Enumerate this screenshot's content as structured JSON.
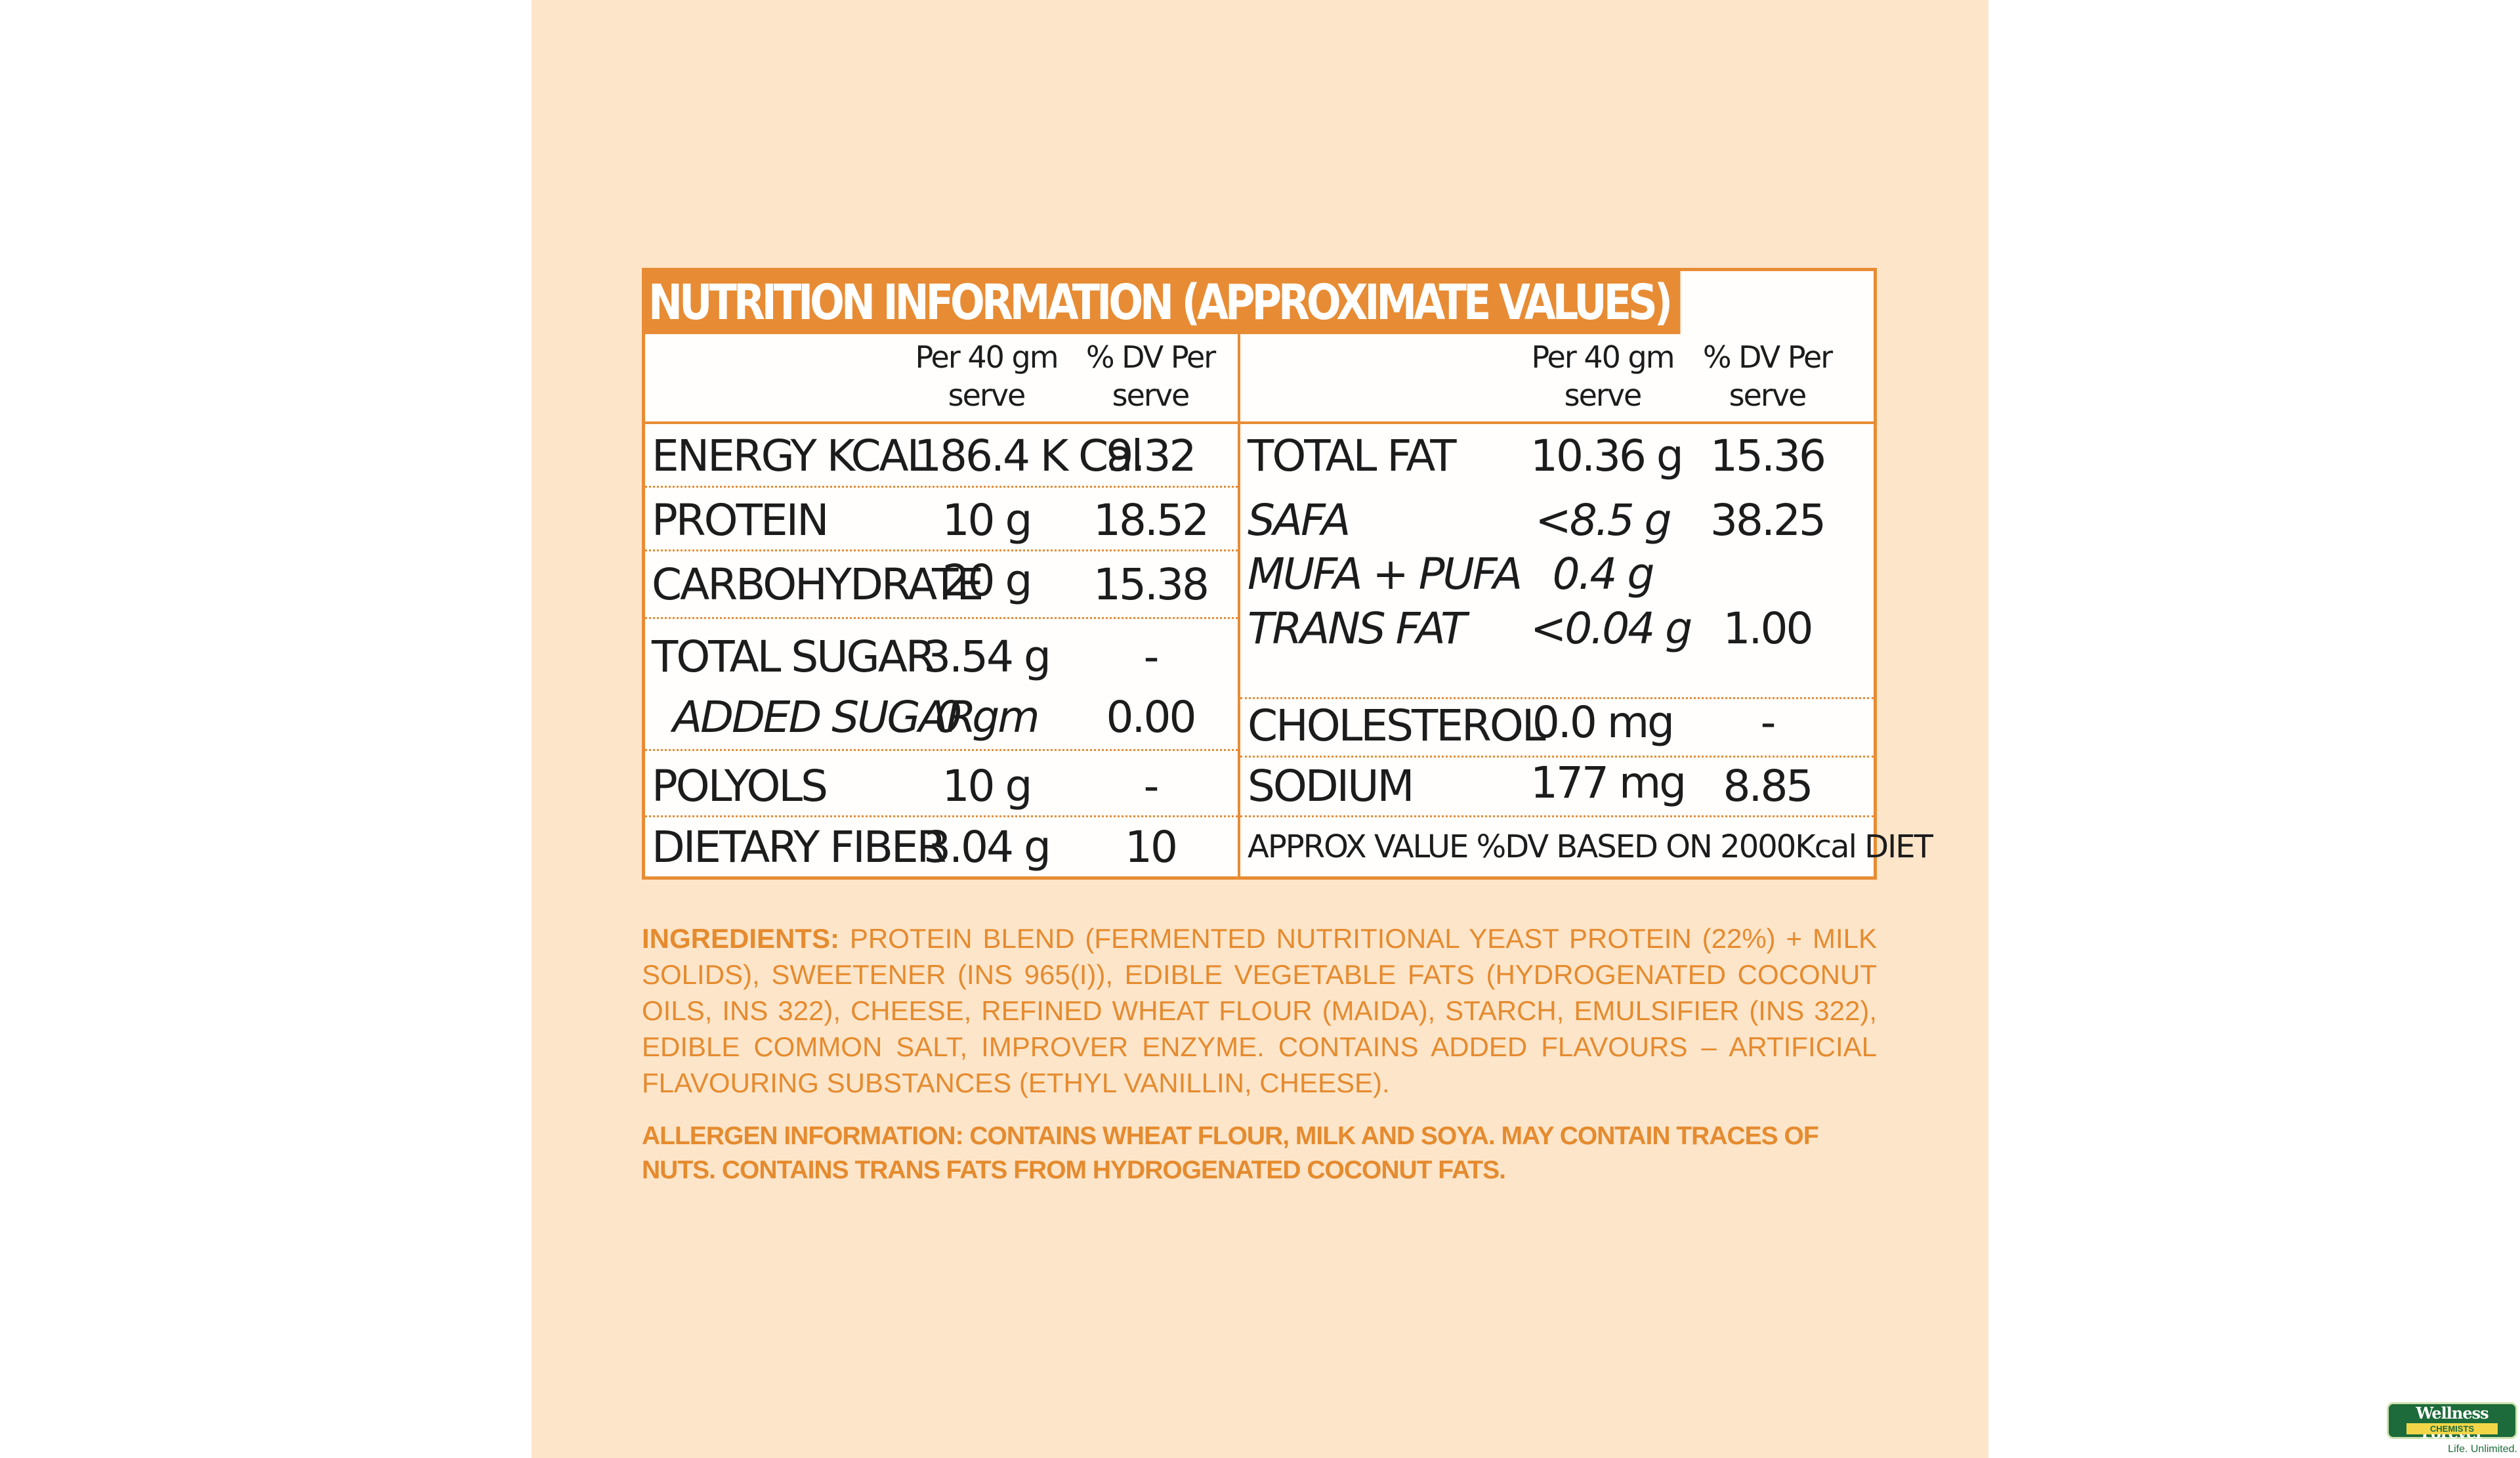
{
  "label": {
    "title": "NUTRITION INFORMATION (APPROXIMATE VALUES)",
    "header": {
      "per_serve_left": "Per 40 gm",
      "per_serve_left_2": "serve",
      "dv_left": "% DV Per",
      "dv_left_2": "serve",
      "per_serve_right": "Per 40 gm",
      "per_serve_right_2": "serve",
      "dv_right": "% DV Per",
      "dv_right_2": "serve"
    },
    "left_rows": [
      {
        "name": "ENERGY KCAL",
        "amount": "186.4 K Cal",
        "dv": "9.32"
      },
      {
        "name": "PROTEIN",
        "amount": "10 g",
        "dv": "18.52"
      },
      {
        "name": "CARBOHYDRATE",
        "amount": "20 g",
        "dv": "15.38"
      },
      {
        "name": "TOTAL SUGAR",
        "amount": "3.54 g",
        "dv": "-"
      },
      {
        "name": "ADDED SUGAR",
        "amount": "0 gm",
        "dv": "0.00"
      },
      {
        "name": "POLYOLS",
        "amount": "10 g",
        "dv": "-"
      },
      {
        "name": "DIETARY FIBER",
        "amount": "3.04 g",
        "dv": "10"
      }
    ],
    "right_rows": [
      {
        "name": "TOTAL FAT",
        "amount": "10.36 g",
        "dv": "15.36"
      },
      {
        "name": "SAFA",
        "amount": "<8.5 g",
        "dv": "38.25"
      },
      {
        "name": "MUFA + PUFA",
        "amount": "0.4 g",
        "dv": ""
      },
      {
        "name": "TRANS FAT",
        "amount": "<0.04 g",
        "dv": "1.00"
      },
      {
        "name": "CHOLESTEROL",
        "amount": "0.0 mg",
        "dv": "-"
      },
      {
        "name": "SODIUM",
        "amount": "177 mg",
        "dv": "8.85"
      }
    ],
    "footnote": "APPROX VALUE %DV BASED ON 2000Kcal DIET"
  },
  "ingredients": {
    "heading": "INGREDIENTS:",
    "text": "PROTEIN BLEND (FERMENTED NUTRITIONAL YEAST PROTEIN (22%) + MILK SOLIDS), SWEETENER (INS 965(I)), EDIBLE VEGETABLE FATS (HYDROGENATED COCONUT OILS, INS 322), CHEESE, REFINED WHEAT FLOUR (MAIDA), STARCH, EMULSIFIER (INS 322), EDIBLE COMMON SALT, IMPROVER ENZYME. CONTAINS ADDED FLAVOURS – ARTIFICIAL FLAVOURING SUBSTANCES (ETHYL VANILLIN, CHEESE)."
  },
  "allergen": {
    "text": "ALLERGEN INFORMATION: CONTAINS WHEAT FLOUR, MILK AND SOYA. MAY CONTAIN TRACES OF NUTS. CONTAINS TRANS FATS FROM HYDROGENATED COCONUT FATS."
  },
  "watermark": {
    "name": "Wellness Forever",
    "sub": "CHEMISTS",
    "tagline": "Life. Unlimited."
  },
  "colors": {
    "panel": "#fde5c9",
    "accent": "#e78c34",
    "text": "#1c1c1c"
  }
}
